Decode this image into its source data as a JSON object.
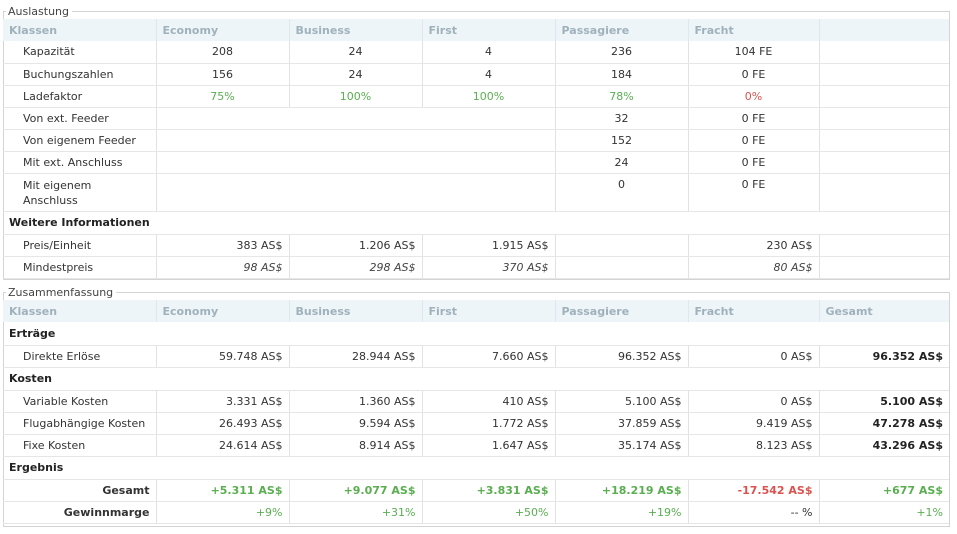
{
  "auslastung": {
    "legend": "Auslastung",
    "headers": [
      "Klassen",
      "Economy",
      "Business",
      "First",
      "Passagiere",
      "Fracht"
    ],
    "rows": [
      {
        "label": "Kapazität",
        "economy": "208",
        "business": "24",
        "first": "4",
        "passagiere": "236",
        "fracht": "104 FE"
      },
      {
        "label": "Buchungszahlen",
        "economy": "156",
        "business": "24",
        "first": "4",
        "passagiere": "184",
        "fracht": "0 FE"
      },
      {
        "label": "Ladefaktor",
        "economy": "75%",
        "business": "100%",
        "first": "100%",
        "passagiere": "78%",
        "fracht": "0%"
      },
      {
        "label": "Von ext. Feeder",
        "passagiere": "32",
        "fracht": "0 FE"
      },
      {
        "label": "Von eigenem Feeder",
        "passagiere": "152",
        "fracht": "0 FE"
      },
      {
        "label": "Mit ext. Anschluss",
        "passagiere": "24",
        "fracht": "0 FE"
      },
      {
        "label": "Mit eigenem Anschluss",
        "passagiere": "0",
        "fracht": "0 FE"
      }
    ],
    "weitere": {
      "title": "Weitere Informationen",
      "rows": [
        {
          "label": "Preis/Einheit",
          "economy": "383 AS$",
          "business": "1.206 AS$",
          "first": "1.915 AS$",
          "fracht": "230 AS$"
        },
        {
          "label": "Mindestpreis",
          "economy": "98 AS$",
          "business": "298 AS$",
          "first": "370 AS$",
          "fracht": "80 AS$"
        }
      ]
    }
  },
  "zusammenfassung": {
    "legend": "Zusammenfassung",
    "headers": [
      "Klassen",
      "Economy",
      "Business",
      "First",
      "Passagiere",
      "Fracht",
      "Gesamt"
    ],
    "ertraege": {
      "title": "Erträge",
      "rows": [
        {
          "label": "Direkte Erlöse",
          "economy": "59.748 AS$",
          "business": "28.944 AS$",
          "first": "7.660 AS$",
          "passagiere": "96.352 AS$",
          "fracht": "0 AS$",
          "gesamt": "96.352 AS$"
        }
      ]
    },
    "kosten": {
      "title": "Kosten",
      "rows": [
        {
          "label": "Variable Kosten",
          "economy": "3.331 AS$",
          "business": "1.360 AS$",
          "first": "410 AS$",
          "passagiere": "5.100 AS$",
          "fracht": "0 AS$",
          "gesamt": "5.100 AS$"
        },
        {
          "label": "Flugabhängige Kosten",
          "economy": "26.493 AS$",
          "business": "9.594 AS$",
          "first": "1.772 AS$",
          "passagiere": "37.859 AS$",
          "fracht": "9.419 AS$",
          "gesamt": "47.278 AS$"
        },
        {
          "label": "Fixe Kosten",
          "economy": "24.614 AS$",
          "business": "8.914 AS$",
          "first": "1.647 AS$",
          "passagiere": "35.174 AS$",
          "fracht": "8.123 AS$",
          "gesamt": "43.296 AS$"
        }
      ]
    },
    "ergebnis": {
      "title": "Ergebnis",
      "gesamt": {
        "label": "Gesamt",
        "economy": "+5.311 AS$",
        "business": "+9.077 AS$",
        "first": "+3.831 AS$",
        "passagiere": "+18.219 AS$",
        "fracht": "-17.542 AS$",
        "gesamt": "+677 AS$"
      },
      "marge": {
        "label": "Gewinnmarge",
        "economy": "+9%",
        "business": "+31%",
        "first": "+50%",
        "passagiere": "+19%",
        "fracht": "-- %",
        "gesamt": "+1%"
      }
    }
  },
  "colors": {
    "positive": "#5aae50",
    "negative": "#d9534f",
    "header_bg": "#eef5f8",
    "header_text": "#9fb2bc"
  }
}
